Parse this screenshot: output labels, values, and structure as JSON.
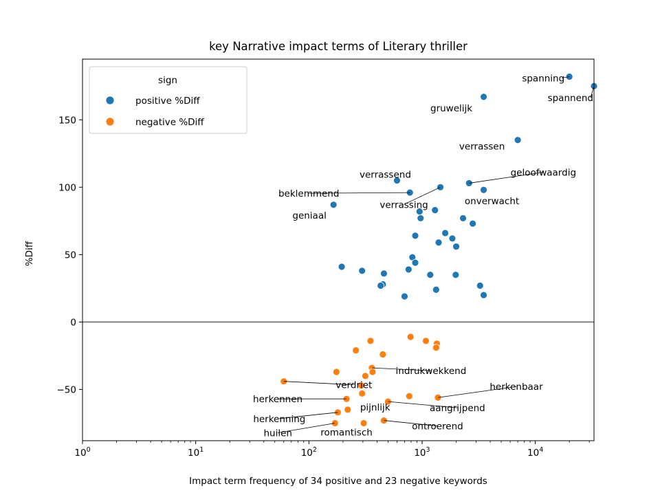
{
  "chart_data": {
    "type": "scatter",
    "title": "key Narrative impact terms of Literary thriller",
    "xlabel": "Impact term frequency of 34 positive and 23 negative keywords",
    "ylabel": "%Diff",
    "xscale": "log",
    "xlim": [
      1,
      33000
    ],
    "ylim": [
      -88,
      195
    ],
    "x_ticks": [
      1,
      10,
      100,
      1000,
      10000
    ],
    "x_tick_labels": [
      "10^0",
      "10^1",
      "10^2",
      "10^3",
      "10^4"
    ],
    "y_ticks": [
      -50,
      0,
      50,
      100,
      150
    ],
    "y_tick_labels": [
      "−50",
      "0",
      "50",
      "100",
      "150"
    ],
    "grid": false,
    "zero_line": 0,
    "legend": {
      "title": "sign",
      "placement": "upper-left",
      "entries": [
        "positive %Diff",
        "negative %Diff"
      ]
    },
    "series": [
      {
        "name": "positive %Diff",
        "color": "#1f77b4",
        "points": [
          {
            "x": 20000,
            "y": 182,
            "label": "spanning"
          },
          {
            "x": 33000,
            "y": 175,
            "label": "spannend"
          },
          {
            "x": 3500,
            "y": 167,
            "label": "gruwelijk"
          },
          {
            "x": 7000,
            "y": 135,
            "label": "verrassen"
          },
          {
            "x": 600,
            "y": 105,
            "label": "verrassend"
          },
          {
            "x": 2600,
            "y": 103,
            "label": "geloofwaardig"
          },
          {
            "x": 1450,
            "y": 100,
            "label": "verrassing"
          },
          {
            "x": 3500,
            "y": 98,
            "label": "onverwacht"
          },
          {
            "x": 780,
            "y": 96,
            "label": "beklemmend"
          },
          {
            "x": 165,
            "y": 87,
            "label": "geniaal"
          },
          {
            "x": 950,
            "y": 82
          },
          {
            "x": 1300,
            "y": 83
          },
          {
            "x": 970,
            "y": 77
          },
          {
            "x": 2300,
            "y": 77
          },
          {
            "x": 2800,
            "y": 73
          },
          {
            "x": 1600,
            "y": 66
          },
          {
            "x": 870,
            "y": 64
          },
          {
            "x": 1850,
            "y": 62
          },
          {
            "x": 1400,
            "y": 59
          },
          {
            "x": 2000,
            "y": 56
          },
          {
            "x": 820,
            "y": 48
          },
          {
            "x": 870,
            "y": 44
          },
          {
            "x": 195,
            "y": 41
          },
          {
            "x": 760,
            "y": 39
          },
          {
            "x": 295,
            "y": 38
          },
          {
            "x": 460,
            "y": 36
          },
          {
            "x": 1180,
            "y": 35
          },
          {
            "x": 1980,
            "y": 35
          },
          {
            "x": 450,
            "y": 28
          },
          {
            "x": 430,
            "y": 27
          },
          {
            "x": 3250,
            "y": 27
          },
          {
            "x": 1330,
            "y": 24
          },
          {
            "x": 3500,
            "y": 20
          },
          {
            "x": 700,
            "y": 19
          }
        ]
      },
      {
        "name": "negative %Diff",
        "color": "#ff7f0e",
        "points": [
          {
            "x": 60,
            "y": -44,
            "label": "verdriet"
          },
          {
            "x": 360,
            "y": -34,
            "label": "indrukwekkend"
          },
          {
            "x": 1380,
            "y": -56,
            "label": "herkenbaar"
          },
          {
            "x": 215,
            "y": -57,
            "label": "herkennen"
          },
          {
            "x": 500,
            "y": -59,
            "label": "aangrijpend"
          },
          {
            "x": 220,
            "y": -65,
            "label": "pijnlijk"
          },
          {
            "x": 180,
            "y": -67,
            "label": "herkenning"
          },
          {
            "x": 460,
            "y": -73,
            "label": "ontroerend"
          },
          {
            "x": 170,
            "y": -75,
            "label": "huilen"
          },
          {
            "x": 305,
            "y": -75,
            "label": "romantisch"
          },
          {
            "x": 790,
            "y": -11
          },
          {
            "x": 1080,
            "y": -14
          },
          {
            "x": 1350,
            "y": -16
          },
          {
            "x": 350,
            "y": -14
          },
          {
            "x": 1330,
            "y": -19
          },
          {
            "x": 260,
            "y": -21
          },
          {
            "x": 450,
            "y": -24
          },
          {
            "x": 175,
            "y": -37
          },
          {
            "x": 315,
            "y": -40
          },
          {
            "x": 290,
            "y": -47
          },
          {
            "x": 295,
            "y": -53
          },
          {
            "x": 770,
            "y": -55
          },
          {
            "x": 365,
            "y": -37
          }
        ]
      }
    ]
  }
}
